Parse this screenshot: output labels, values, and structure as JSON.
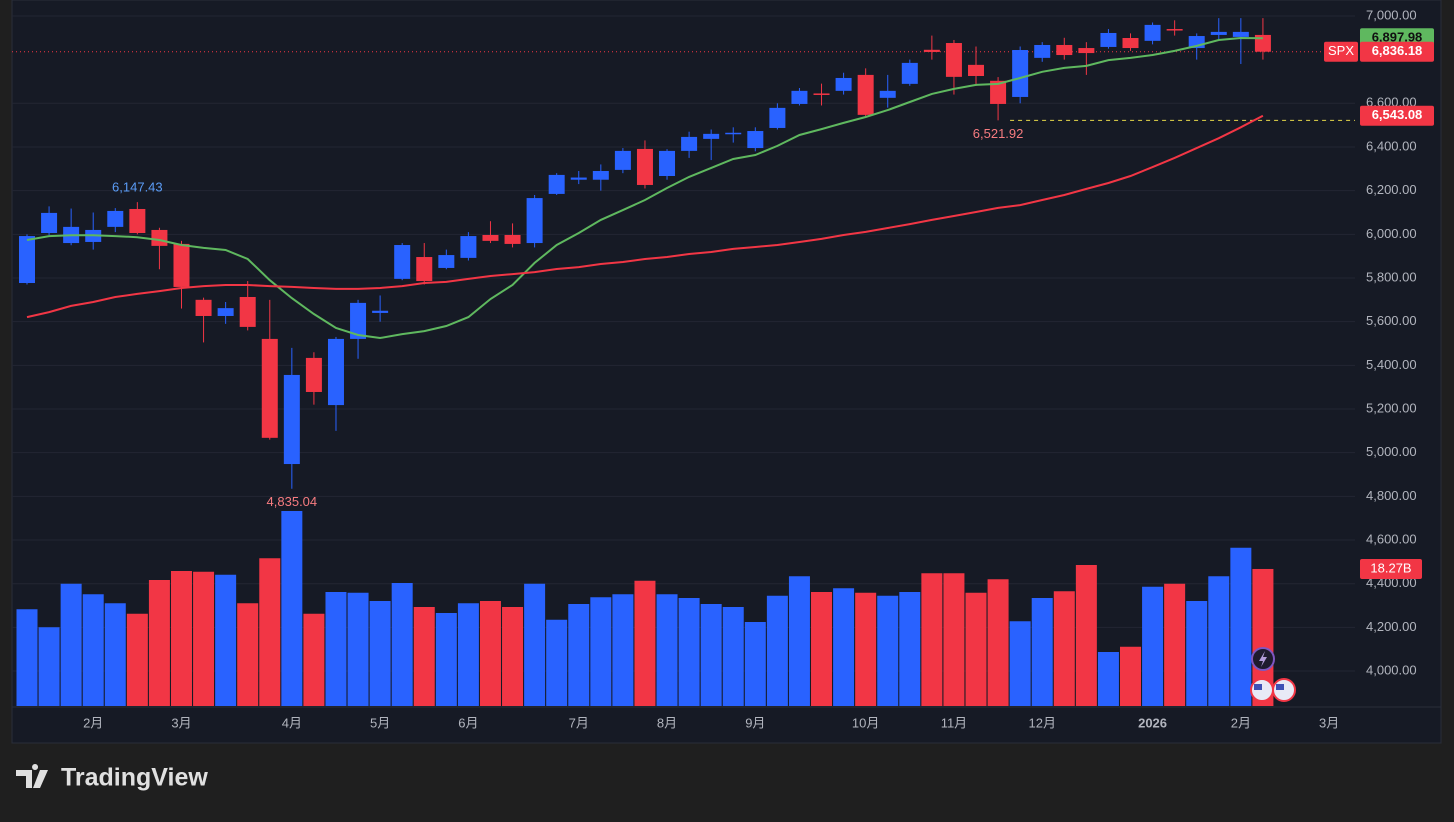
{
  "chart_data": {
    "type": "candlestick",
    "symbol": "SPX",
    "up_color": "#2962ff",
    "down_color": "#f23645",
    "ylim": [
      3840,
      7073
    ],
    "yticks": [
      {
        "value": 7000,
        "label": "7,000.00"
      },
      {
        "value": 6600,
        "label": "6,600.00"
      },
      {
        "value": 6400,
        "label": "6,400.00"
      },
      {
        "value": 6200,
        "label": "6,200.00"
      },
      {
        "value": 6000,
        "label": "6,000.00"
      },
      {
        "value": 5800,
        "label": "5,800.00"
      },
      {
        "value": 5600,
        "label": "5,600.00"
      },
      {
        "value": 5400,
        "label": "5,400.00"
      },
      {
        "value": 5200,
        "label": "5,200.00"
      },
      {
        "value": 5000,
        "label": "5,000.00"
      },
      {
        "value": 4800,
        "label": "4,800.00"
      },
      {
        "value": 4600,
        "label": "4,600.00"
      },
      {
        "value": 4400,
        "label": "4,400.00"
      },
      {
        "value": 4200,
        "label": "4,200.00"
      },
      {
        "value": 4000,
        "label": "4,000.00"
      }
    ],
    "grid": true,
    "categories": [
      null,
      null,
      null,
      "2月",
      null,
      null,
      null,
      "3月",
      null,
      null,
      null,
      null,
      "4月",
      null,
      null,
      null,
      "5月",
      null,
      null,
      null,
      "6月",
      null,
      null,
      null,
      null,
      "7月",
      null,
      null,
      null,
      "8月",
      null,
      null,
      null,
      "9月",
      null,
      null,
      null,
      null,
      "10月",
      null,
      null,
      null,
      "11月",
      null,
      null,
      null,
      "12月",
      null,
      null,
      null,
      null,
      "2026",
      null,
      null,
      null,
      "2月",
      null,
      null,
      null,
      "3月"
    ],
    "ohlc": {
      "open": [
        5777,
        6006,
        5960,
        5965,
        6034,
        6116,
        6020,
        5956,
        5700,
        5626,
        5713,
        5521,
        4948,
        5434,
        5218,
        5521,
        5640,
        5796,
        5896,
        5846,
        5892,
        5997,
        5997,
        5960,
        6185,
        6250,
        6250,
        6295,
        6391,
        6267,
        6382,
        6437,
        6460,
        6395,
        6487,
        6597,
        6645,
        6657,
        6730,
        6625,
        6689,
        6845,
        6876,
        6776,
        6703,
        6629,
        6808,
        6867,
        6853,
        6858,
        6899,
        6886,
        6940,
        6853,
        6913,
        6904,
        6913,
        null,
        null,
        null
      ],
      "high": [
        6000,
        6128,
        6118,
        6100,
        6120,
        6147.43,
        6030,
        5970,
        5710,
        5690,
        5786,
        5700,
        5480,
        5460,
        5530,
        5700,
        5720,
        5960,
        5960,
        5930,
        6010,
        6060,
        6050,
        6180,
        6280,
        6290,
        6320,
        6395,
        6430,
        6390,
        6470,
        6480,
        6490,
        6490,
        6600,
        6670,
        6690,
        6740,
        6760,
        6730,
        6800,
        6910,
        6890,
        6860,
        6720,
        6860,
        6880,
        6900,
        6880,
        6940,
        6920,
        6970,
        6980,
        6920,
        6990,
        6990,
        6990,
        null,
        null,
        null
      ],
      "low": [
        5770,
        5997,
        5950,
        5930,
        6010,
        6000,
        5840,
        5660,
        5505,
        5590,
        5560,
        5060,
        4835.04,
        5220,
        5100,
        5430,
        5600,
        5790,
        5770,
        5840,
        5880,
        5960,
        5940,
        5940,
        6180,
        6230,
        6200,
        6280,
        6210,
        6250,
        6350,
        6340,
        6420,
        6380,
        6480,
        6590,
        6590,
        6640,
        6540,
        6580,
        6680,
        6800,
        6640,
        6680,
        6521.92,
        6600,
        6790,
        6800,
        6730,
        6850,
        6840,
        6870,
        6910,
        6800,
        6890,
        6780,
        6800,
        null,
        null,
        null
      ],
      "close": [
        5992,
        6098,
        6034,
        6020,
        6107,
        6006,
        5947,
        5759,
        5626,
        5662,
        5576,
        5068,
        5356,
        5278,
        5521,
        5686,
        5650,
        5951,
        5786,
        5905,
        5992,
        5970,
        5956,
        6166,
        6272,
        6260,
        6290,
        6382,
        6226,
        6382,
        6446,
        6460,
        6465,
        6473,
        6579,
        6657,
        6640,
        6716,
        6547,
        6657,
        6785,
        6835,
        6721,
        6725,
        6597,
        6844,
        6867,
        6821,
        6830,
        6922,
        6853,
        6959,
        6935,
        6908,
        6927,
        6927,
        6836.18,
        null,
        null,
        null
      ],
      "close_labels": [
        null,
        null,
        null,
        null,
        null,
        null,
        null,
        null,
        null,
        null,
        null,
        null,
        null,
        null,
        null,
        null,
        null,
        null,
        null,
        null,
        null,
        null,
        null,
        null,
        null,
        null,
        null,
        null,
        null,
        null,
        null,
        null,
        null,
        null,
        null,
        null,
        null,
        null,
        null,
        null,
        null,
        null,
        null,
        null,
        null,
        null,
        null,
        null,
        null,
        null,
        null,
        null,
        null,
        null,
        null,
        null,
        "6,836.18",
        null,
        null,
        null
      ],
      "high_labels": [
        null,
        null,
        null,
        null,
        null,
        "6,147.43",
        null,
        null,
        null,
        null,
        null,
        null,
        null,
        null,
        null,
        null,
        null,
        null,
        null,
        null,
        null,
        null,
        null,
        null,
        null,
        null,
        null,
        null,
        null,
        null,
        null,
        null,
        null,
        null,
        null,
        null,
        null,
        null,
        null,
        null,
        null,
        null,
        null,
        null,
        null,
        null,
        null,
        null,
        null,
        null,
        null,
        null,
        null,
        null,
        null,
        null,
        null,
        null,
        null,
        null
      ],
      "low_labels": [
        null,
        null,
        null,
        null,
        null,
        null,
        null,
        null,
        null,
        null,
        null,
        null,
        "4,835.04",
        null,
        null,
        null,
        null,
        null,
        null,
        null,
        null,
        null,
        null,
        null,
        null,
        null,
        null,
        null,
        null,
        null,
        null,
        null,
        null,
        null,
        null,
        null,
        null,
        null,
        null,
        null,
        null,
        null,
        null,
        null,
        "6,521.92",
        null,
        null,
        null,
        null,
        null,
        null,
        null,
        null,
        null,
        null,
        null,
        null,
        null,
        null,
        null
      ]
    },
    "moving_averages": [
      {
        "color": "#5fb85f",
        "values": [
          5974,
          5992,
          5996,
          5996,
          5992,
          5987,
          5974,
          5951,
          5938,
          5928,
          5887,
          5790,
          5708,
          5635,
          5571,
          5539,
          5525,
          5543,
          5557,
          5580,
          5621,
          5704,
          5768,
          5869,
          5951,
          6006,
          6066,
          6111,
          6157,
          6212,
          6263,
          6304,
          6345,
          6363,
          6405,
          6455,
          6482,
          6510,
          6537,
          6569,
          6606,
          6643,
          6666,
          6684,
          6689,
          6716,
          6744,
          6762,
          6771,
          6798,
          6808,
          6821,
          6840,
          6863,
          6890,
          6899,
          6897.98,
          null,
          null,
          null
        ],
        "value_labels": [
          null,
          null,
          null,
          null,
          null,
          null,
          null,
          null,
          null,
          null,
          null,
          null,
          null,
          null,
          null,
          null,
          null,
          null,
          null,
          null,
          null,
          null,
          null,
          null,
          null,
          null,
          null,
          null,
          null,
          null,
          null,
          null,
          null,
          null,
          null,
          null,
          null,
          null,
          null,
          null,
          null,
          null,
          null,
          null,
          null,
          null,
          null,
          null,
          null,
          null,
          null,
          null,
          null,
          null,
          null,
          null,
          "6,897.98",
          null,
          null,
          null
        ]
      },
      {
        "color": "#f23645",
        "values": [
          5621,
          5644,
          5672,
          5690,
          5713,
          5727,
          5740,
          5754,
          5763,
          5768,
          5768,
          5763,
          5759,
          5754,
          5750,
          5750,
          5754,
          5763,
          5777,
          5782,
          5796,
          5809,
          5818,
          5827,
          5841,
          5850,
          5864,
          5873,
          5887,
          5896,
          5910,
          5919,
          5933,
          5942,
          5951,
          5965,
          5979,
          5997,
          6011,
          6029,
          6047,
          6066,
          6084,
          6102,
          6121,
          6134,
          6157,
          6180,
          6208,
          6235,
          6267,
          6308,
          6350,
          6395,
          6440,
          6490,
          6543.08,
          null,
          null,
          null
        ],
        "value_labels": [
          null,
          null,
          null,
          null,
          null,
          null,
          null,
          null,
          null,
          null,
          null,
          null,
          null,
          null,
          null,
          null,
          null,
          null,
          null,
          null,
          null,
          null,
          null,
          null,
          null,
          null,
          null,
          null,
          null,
          null,
          null,
          null,
          null,
          null,
          null,
          null,
          null,
          null,
          null,
          null,
          null,
          null,
          null,
          null,
          null,
          null,
          null,
          null,
          null,
          null,
          null,
          null,
          null,
          null,
          null,
          null,
          "6,543.08",
          null,
          null,
          null
        ]
      }
    ],
    "volume": {
      "values": [
        12.9,
        10.5,
        16.3,
        14.9,
        13.7,
        12.3,
        16.8,
        18.0,
        17.9,
        17.5,
        13.7,
        19.7,
        26.0,
        12.3,
        15.2,
        15.1,
        14.0,
        16.4,
        13.2,
        12.4,
        13.7,
        14.0,
        13.2,
        16.3,
        11.5,
        13.6,
        14.5,
        14.9,
        16.7,
        14.9,
        14.4,
        13.6,
        13.2,
        11.2,
        14.7,
        17.3,
        15.2,
        15.7,
        15.1,
        14.7,
        15.2,
        17.7,
        17.7,
        15.1,
        16.9,
        11.3,
        14.4,
        15.3,
        18.8,
        7.2,
        7.9,
        15.9,
        16.3,
        14.0,
        17.3,
        21.1,
        18.27,
        null,
        null,
        null
      ],
      "value_labels": [
        null,
        null,
        null,
        null,
        null,
        null,
        null,
        null,
        null,
        null,
        null,
        null,
        null,
        null,
        null,
        null,
        null,
        null,
        null,
        null,
        null,
        null,
        null,
        null,
        null,
        null,
        null,
        null,
        null,
        null,
        null,
        null,
        null,
        null,
        null,
        null,
        null,
        null,
        null,
        null,
        null,
        null,
        null,
        null,
        null,
        null,
        null,
        null,
        null,
        null,
        null,
        null,
        null,
        null,
        null,
        null,
        "18.27B",
        null,
        null,
        null
      ]
    }
  },
  "watermark": "TradingView"
}
